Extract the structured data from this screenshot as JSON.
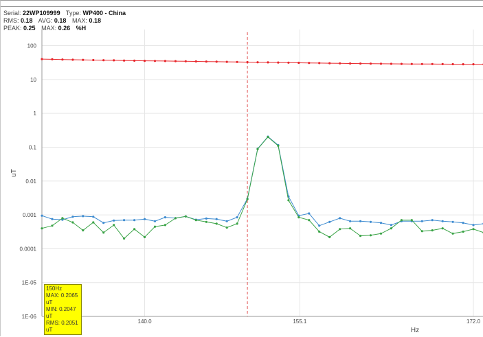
{
  "header": {
    "serial_label": "Serial:",
    "serial": "22WP109999",
    "type_label": "Type:",
    "type": "WP400 - China",
    "rms_label": "RMS:",
    "rms": "0.18",
    "avg_label": "AVG:",
    "avg": "0.18",
    "max_label": "MAX:",
    "max": "0.18",
    "peak_label": "PEAK:",
    "peak": "0.25",
    "max2_label": "MAX:",
    "max2": "0.26",
    "max2_unit": "%H"
  },
  "tooltip": {
    "freq": "150Hz",
    "max": "MAX: 0.2065 uT",
    "min": "MIN: 0.2047 uT",
    "rms": "RMS: 0.2051 uT"
  },
  "colors": {
    "red": "#e8262b",
    "blue": "#3d8bd0",
    "green": "#3aa346",
    "cursor": "#e05252",
    "grid": "#e6e6e6"
  },
  "chart_data": {
    "type": "line",
    "xlabel": "Hz",
    "ylabel": "uT",
    "yscale": "log",
    "ylim": [
      1e-06,
      300
    ],
    "xlim": [
      130,
      173
    ],
    "x_ticks": [
      140.0,
      155.1,
      172.0
    ],
    "x_tick_labels": [
      "140.0",
      "155.1",
      "172.0"
    ],
    "y_ticks": [
      100,
      10,
      1,
      0.1,
      0.01,
      0.001,
      0.0001,
      1e-05,
      1e-06
    ],
    "y_tick_labels": [
      "100",
      "10",
      "1",
      "0.1",
      "0.01",
      "0.001",
      "0.0001",
      "1E-05",
      "1E-06"
    ],
    "cursor_x": 150,
    "grid": true,
    "x": [
      130.0,
      131.0,
      132.0,
      133.0,
      134.0,
      135.0,
      136.0,
      137.0,
      138.0,
      139.0,
      140.0,
      141.0,
      142.0,
      143.0,
      144.0,
      145.0,
      146.0,
      147.0,
      148.0,
      149.0,
      150.0,
      151.0,
      152.0,
      153.0,
      154.0,
      155.0,
      156.0,
      157.0,
      158.0,
      159.0,
      160.0,
      161.0,
      162.0,
      163.0,
      164.0,
      165.0,
      166.0,
      167.0,
      168.0,
      169.0,
      170.0,
      171.0,
      172.0,
      173.0
    ],
    "series": [
      {
        "color": "#e8262b",
        "values": [
          40,
          39.5,
          39,
          38.5,
          38,
          37.6,
          37.2,
          36.8,
          36.4,
          36,
          35.7,
          35.4,
          35.1,
          34.8,
          34.5,
          34.2,
          33.9,
          33.6,
          33.3,
          33,
          32.7,
          32.4,
          32.1,
          31.8,
          31.5,
          31.2,
          30.9,
          30.6,
          30.3,
          30,
          29.8,
          29.6,
          29.4,
          29.2,
          29,
          28.9,
          28.8,
          28.7,
          28.6,
          28.5,
          28.4,
          28.3,
          28.2,
          28.1
        ]
      },
      {
        "color": "#3d8bd0",
        "values": [
          0.00095,
          0.00075,
          0.00072,
          0.00088,
          0.00092,
          0.00088,
          0.00058,
          0.00068,
          0.0007,
          0.0007,
          0.00075,
          0.00065,
          0.00085,
          0.0008,
          0.0009,
          0.00072,
          0.00078,
          0.00075,
          0.00065,
          0.00085,
          0.003,
          0.09,
          0.205,
          0.115,
          0.0035,
          0.00095,
          0.0011,
          0.00048,
          0.00062,
          0.0008,
          0.00065,
          0.00065,
          0.00062,
          0.00058,
          0.0005,
          0.00065,
          0.00065,
          0.00065,
          0.0007,
          0.00065,
          0.00062,
          0.00058,
          0.0005,
          0.00055
        ]
      },
      {
        "color": "#3aa346",
        "values": [
          0.0004,
          0.00048,
          0.0008,
          0.0006,
          0.00035,
          0.0006,
          0.0003,
          0.0005,
          0.0002,
          0.00038,
          0.00022,
          0.00045,
          0.0005,
          0.0008,
          0.0009,
          0.0007,
          0.00062,
          0.00055,
          0.00042,
          0.00055,
          0.0029,
          0.088,
          0.2,
          0.11,
          0.0027,
          0.00085,
          0.0007,
          0.00032,
          0.00022,
          0.00038,
          0.0004,
          0.00024,
          0.00025,
          0.00028,
          0.0004,
          0.0007,
          0.0007,
          0.00033,
          0.00035,
          0.0004,
          0.00028,
          0.00032,
          0.00038,
          0.0003
        ]
      }
    ]
  }
}
